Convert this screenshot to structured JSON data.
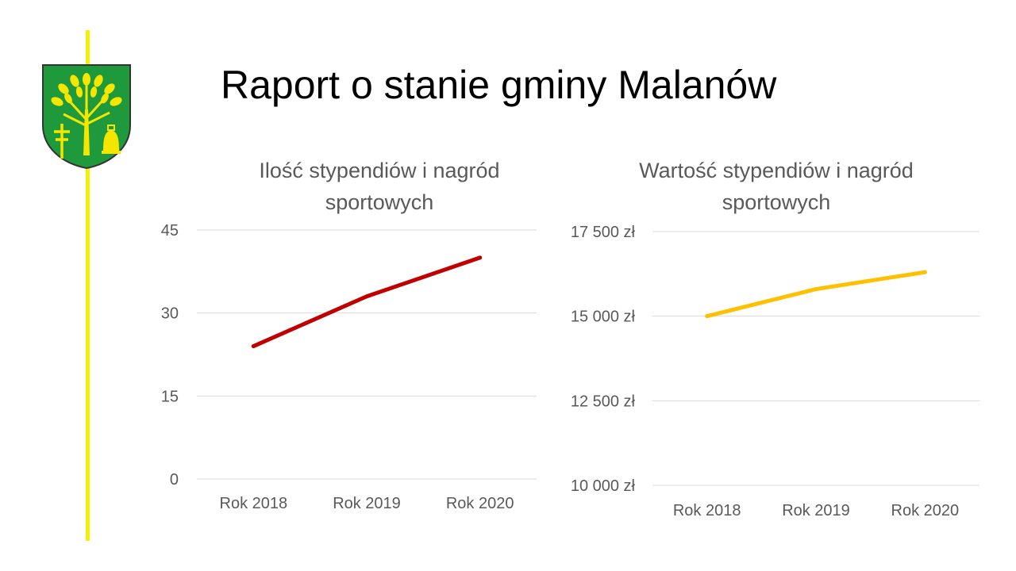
{
  "title": "Raport o stanie gminy Malanów",
  "colors": {
    "accent_line": "#f2f200",
    "series_count": "#c00000",
    "series_value": "#ffc000",
    "gridline": "#d9d9d9",
    "crest_green": "#1e9a3c",
    "crest_gold": "#f5e600"
  },
  "crest": {
    "icon": "coat-of-arms-icon"
  },
  "chart_data": [
    {
      "type": "line",
      "title_lines": [
        "Ilość stypendiów i nagród",
        "sportowych"
      ],
      "categories": [
        "Rok 2018",
        "Rok 2019",
        "Rok 2020"
      ],
      "series": [
        {
          "values": [
            24,
            33,
            40
          ]
        }
      ],
      "ylim": [
        0,
        45
      ],
      "yticks": [
        0,
        15,
        30,
        45
      ],
      "ytick_labels": [
        "0",
        "15",
        "30",
        "45"
      ],
      "grid": true,
      "legend": "none"
    },
    {
      "type": "line",
      "title_lines": [
        "Wartość stypendiów i nagród",
        "sportowych"
      ],
      "categories": [
        "Rok 2018",
        "Rok 2019",
        "Rok 2020"
      ],
      "series": [
        {
          "values": [
            15000,
            15800,
            16300
          ]
        }
      ],
      "ylim": [
        10000,
        17500
      ],
      "yticks": [
        10000,
        12500,
        15000,
        17500
      ],
      "ytick_labels": [
        "10 000 zł",
        "12 500 zł",
        "15 000 zł",
        "17 500 zł"
      ],
      "grid": true,
      "legend": "none"
    }
  ]
}
